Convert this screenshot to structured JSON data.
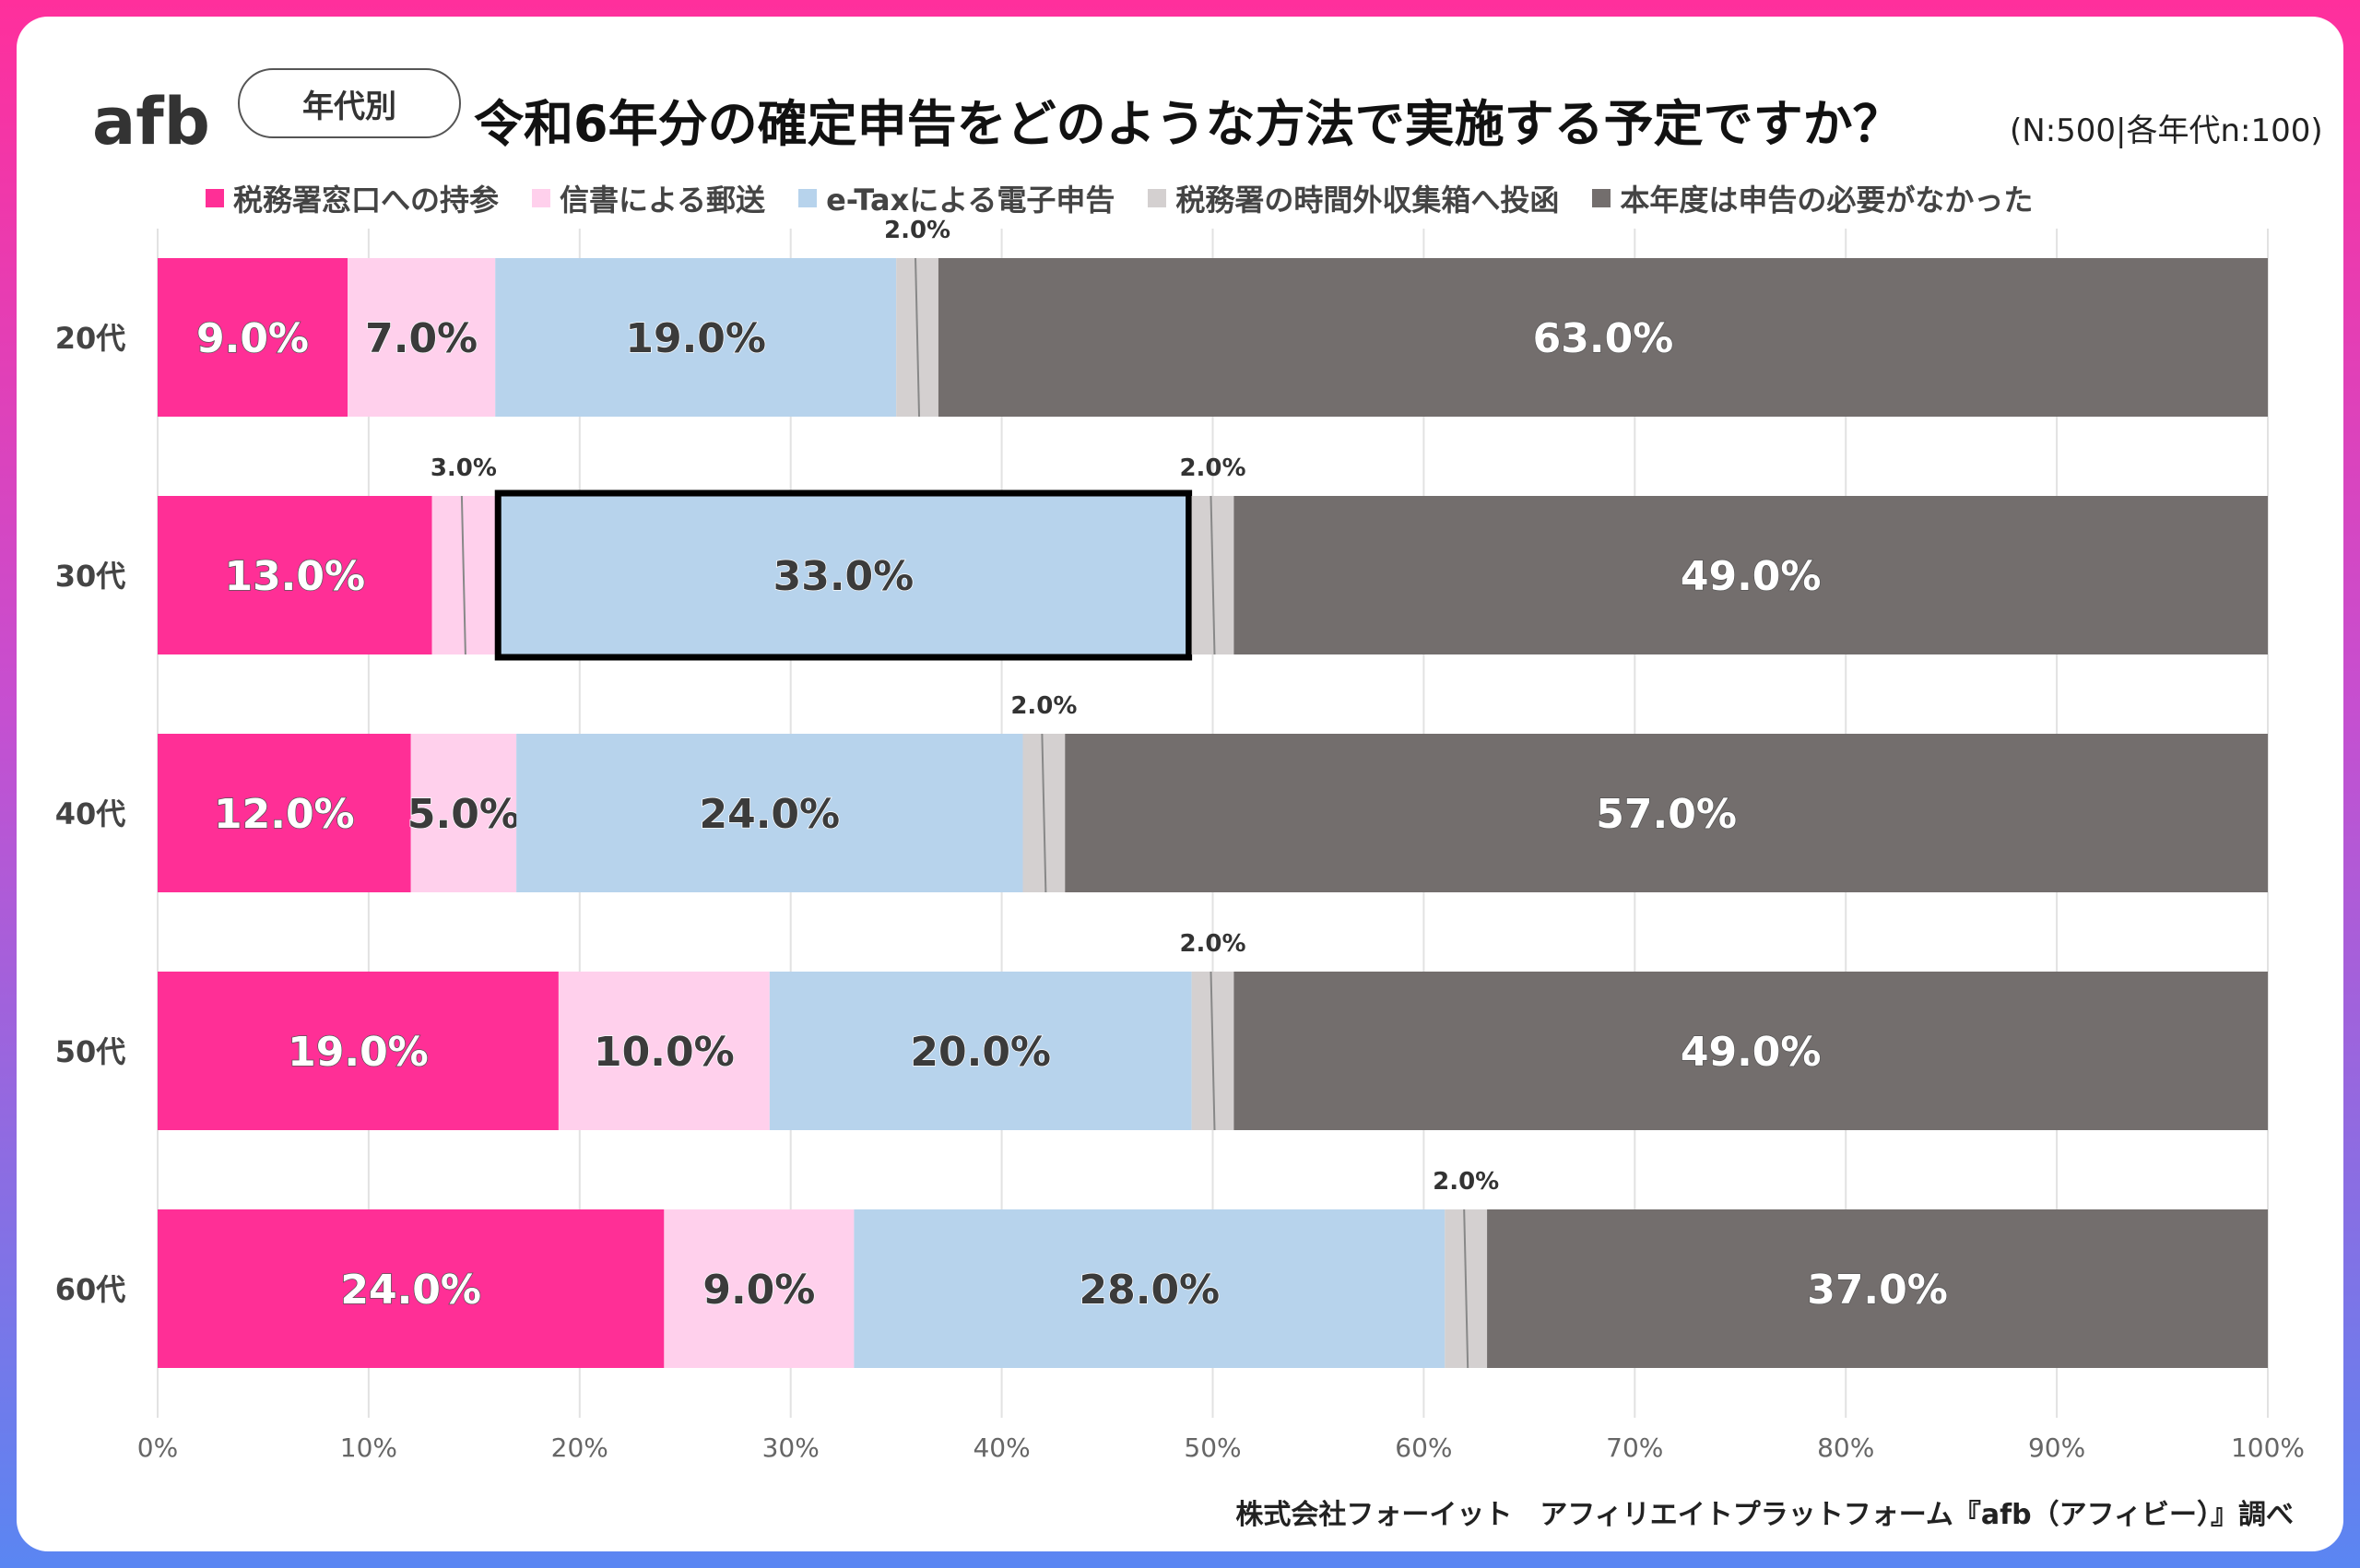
{
  "header": {
    "logo_text": "afb",
    "badge": "年代別",
    "title": "令和6年分の確定申告をどのような方法で実施する予定ですか？",
    "sample": "(N:500|各年代n:100)"
  },
  "source": "株式会社フォーイット　アフィリエイトプラットフォーム『afb（アフィビー）』調べ",
  "colors": {
    "series": [
      "#ff2f96",
      "#ffd0ec",
      "#b7d3ec",
      "#d4d0d0",
      "#736e6d"
    ],
    "highlight": "#000000"
  },
  "chart_data": {
    "type": "bar",
    "orientation": "horizontal",
    "stacked": true,
    "categories": [
      "20代",
      "30代",
      "40代",
      "50代",
      "60代"
    ],
    "series": [
      {
        "name": "税務署窓口への持参",
        "values": [
          9.0,
          13.0,
          12.0,
          19.0,
          24.0
        ]
      },
      {
        "name": "信書による郵送",
        "values": [
          7.0,
          3.0,
          5.0,
          10.0,
          9.0
        ]
      },
      {
        "name": "e-Taxによる電子申告",
        "values": [
          19.0,
          33.0,
          24.0,
          20.0,
          28.0
        ]
      },
      {
        "name": "税務署の時間外収集箱へ投函",
        "values": [
          2.0,
          2.0,
          2.0,
          2.0,
          2.0
        ]
      },
      {
        "name": "本年度は申告の必要がなかった",
        "values": [
          63.0,
          49.0,
          57.0,
          49.0,
          37.0
        ]
      }
    ],
    "xlim": [
      0,
      100
    ],
    "xticks": [
      "0%",
      "10%",
      "20%",
      "30%",
      "40%",
      "50%",
      "60%",
      "70%",
      "80%",
      "90%",
      "100%"
    ],
    "grid": true,
    "legend_position": "top",
    "highlighted": {
      "category": "30代",
      "series": "e-Taxによる電子申告"
    }
  }
}
